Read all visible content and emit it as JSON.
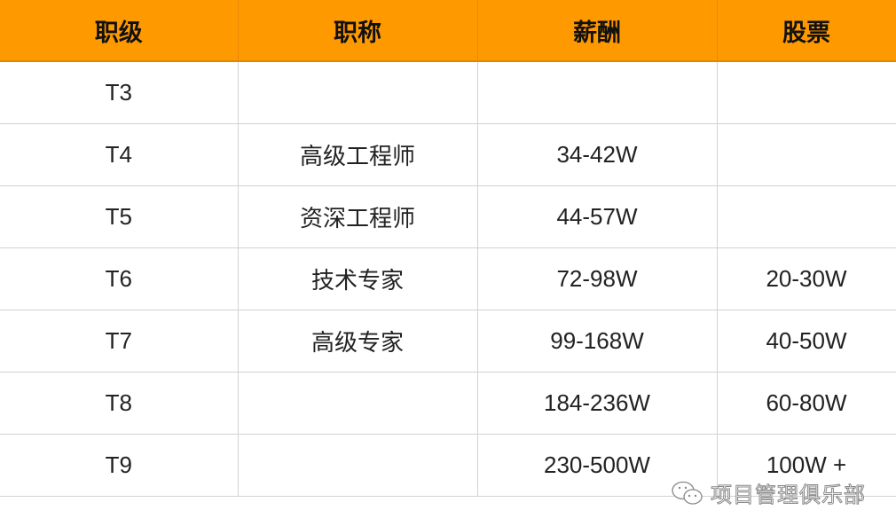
{
  "table": {
    "headers": [
      "职级",
      "职称",
      "薪酬",
      "股票"
    ],
    "rows": [
      [
        "T3",
        "",
        "",
        ""
      ],
      [
        "T4",
        "高级工程师",
        "34-42W",
        ""
      ],
      [
        "T5",
        "资深工程师",
        "44-57W",
        ""
      ],
      [
        "T6",
        "技术专家",
        "72-98W",
        "20-30W"
      ],
      [
        "T7",
        "高级专家",
        "99-168W",
        "40-50W"
      ],
      [
        "T8",
        "",
        "184-236W",
        "60-80W"
      ],
      [
        "T9",
        "",
        "230-500W",
        "100W +"
      ]
    ]
  },
  "watermark": {
    "icon": "wechat-icon",
    "text": "项目管理俱乐部"
  },
  "colors": {
    "header_bg": "#FF9900",
    "border": "#d2d2d2"
  }
}
